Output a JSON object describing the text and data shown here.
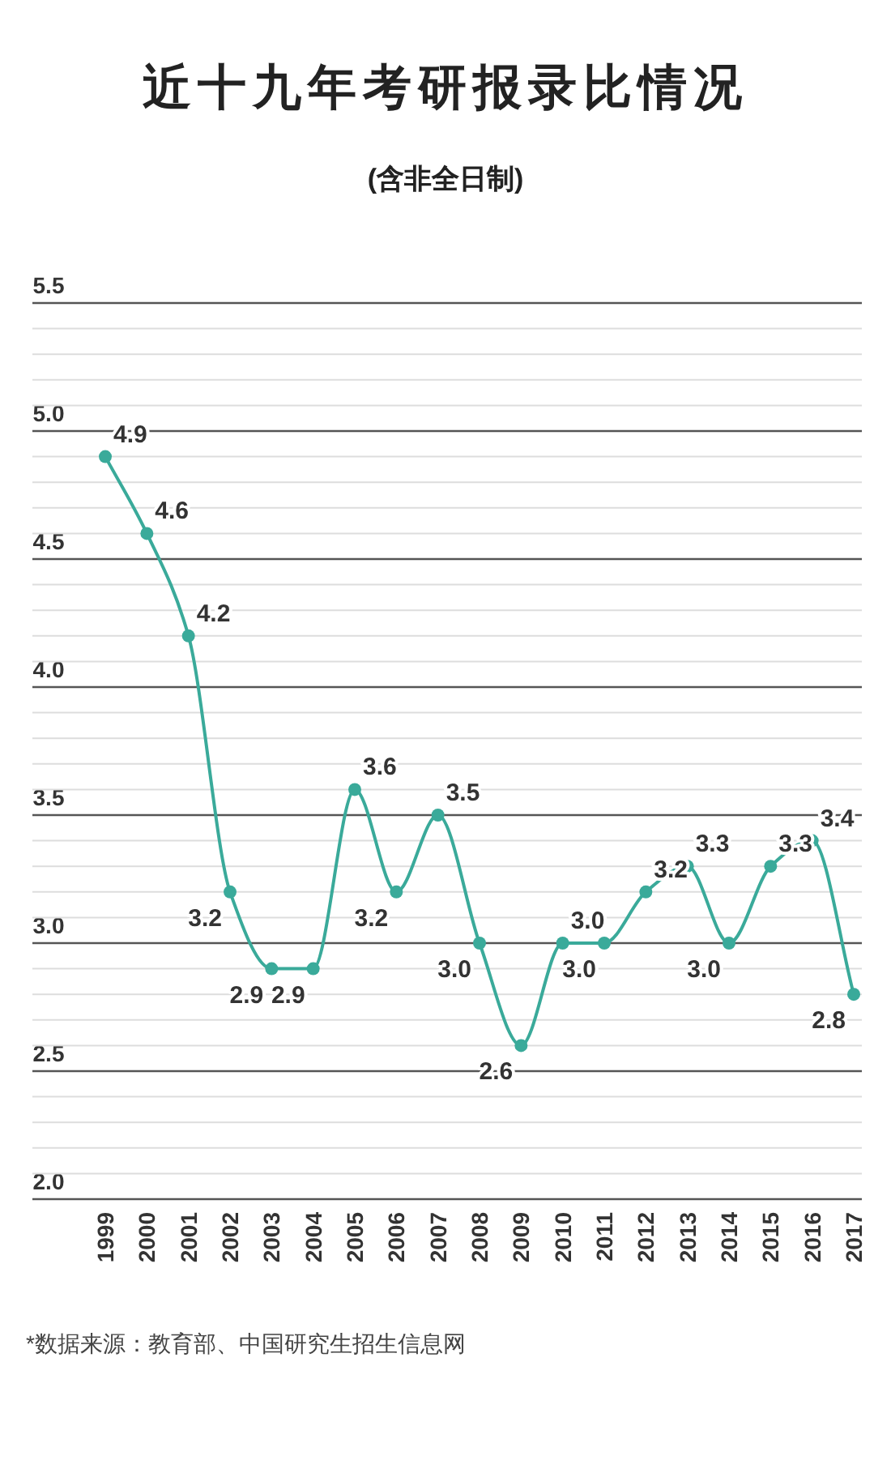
{
  "chart_data": {
    "type": "line",
    "title": "近十九年考研报录比情况",
    "subtitle": "(含非全日制)",
    "categories": [
      "1999",
      "2000",
      "2001",
      "2002",
      "2003",
      "2004",
      "2005",
      "2006",
      "2007",
      "2008",
      "2009",
      "2010",
      "2011",
      "2012",
      "2013",
      "2014",
      "2015",
      "2016",
      "2017"
    ],
    "series": [
      {
        "color": "#3aaa9a",
        "values": [
          4.9,
          4.6,
          4.2,
          3.2,
          2.9,
          2.9,
          3.6,
          3.2,
          3.5,
          3.0,
          2.6,
          3.0,
          3.0,
          3.2,
          3.3,
          3.0,
          3.3,
          3.4,
          2.8
        ],
        "value_labels": [
          "4.9",
          "4.6",
          "4.2",
          "3.2",
          "2.9",
          "2.9",
          "3.6",
          "3.2",
          "3.5",
          "3.0",
          "2.6",
          "3.0",
          "3.0",
          "3.2",
          "3.3",
          "3.0",
          "3.3",
          "3.4",
          "2.8"
        ]
      }
    ],
    "ylim": [
      2.0,
      5.5
    ],
    "yticks": [
      {
        "value": 2.0,
        "label": "2.0"
      },
      {
        "value": 2.1,
        "label": null
      },
      {
        "value": 2.2,
        "label": null
      },
      {
        "value": 2.3,
        "label": null
      },
      {
        "value": 2.4,
        "label": null
      },
      {
        "value": 2.5,
        "label": "2.5"
      },
      {
        "value": 2.6,
        "label": null
      },
      {
        "value": 2.7,
        "label": null
      },
      {
        "value": 2.8,
        "label": null
      },
      {
        "value": 2.9,
        "label": null
      },
      {
        "value": 3.0,
        "label": "3.0"
      },
      {
        "value": 3.1,
        "label": null
      },
      {
        "value": 3.2,
        "label": null
      },
      {
        "value": 3.3,
        "label": null
      },
      {
        "value": 3.4,
        "label": null
      },
      {
        "value": 3.5,
        "label": "3.5"
      },
      {
        "value": 3.6,
        "label": null
      },
      {
        "value": 3.7,
        "label": null
      },
      {
        "value": 3.8,
        "label": null
      },
      {
        "value": 3.9,
        "label": null
      },
      {
        "value": 4.0,
        "label": "4.0"
      },
      {
        "value": 4.1,
        "label": null
      },
      {
        "value": 4.2,
        "label": null
      },
      {
        "value": 4.3,
        "label": null
      },
      {
        "value": 4.4,
        "label": null
      },
      {
        "value": 4.5,
        "label": "4.5"
      },
      {
        "value": 4.6,
        "label": null
      },
      {
        "value": 4.7,
        "label": null
      },
      {
        "value": 4.8,
        "label": null
      },
      {
        "value": 4.9,
        "label": null
      },
      {
        "value": 5.0,
        "label": "5.0"
      },
      {
        "value": 5.1,
        "label": null
      },
      {
        "value": 5.2,
        "label": null
      },
      {
        "value": 5.3,
        "label": null
      },
      {
        "value": 5.4,
        "label": null
      },
      {
        "value": 5.5,
        "label": "5.5"
      }
    ],
    "grid": "y",
    "marker": "circle",
    "line_style": "solid",
    "annotations": [
      "*数据来源：教育部、中国研究生招生信息网"
    ]
  }
}
